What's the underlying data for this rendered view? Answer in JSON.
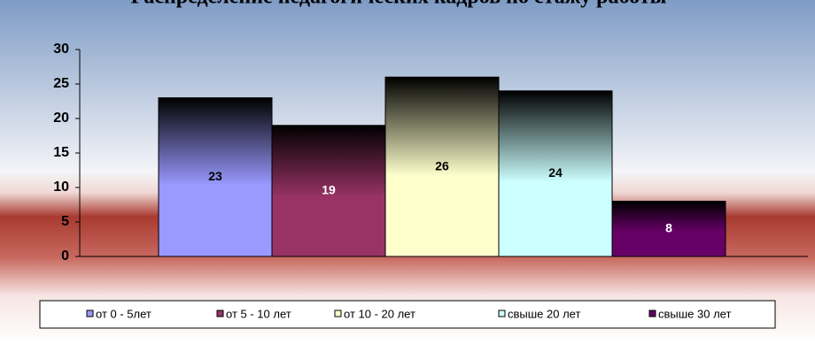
{
  "chart_data": {
    "type": "bar",
    "title": "Распределение педагогических кадров по стажу работы",
    "series": [
      {
        "name": "от 0 - 5лет",
        "color": "#9999ff",
        "values": [
          23
        ]
      },
      {
        "name": "от 5 - 10 лет",
        "color": "#993366",
        "values": [
          19
        ]
      },
      {
        "name": "от 10 - 20 лет",
        "color": "#ffffcc",
        "values": [
          26
        ]
      },
      {
        "name": "свыше 20 лет",
        "color": "#ccffff",
        "values": [
          24
        ]
      },
      {
        "name": "свыше 30 лет",
        "color": "#660066",
        "values": [
          8
        ]
      }
    ],
    "ylim": [
      0,
      30
    ],
    "yticks": [
      0,
      5,
      10,
      15,
      20,
      25,
      30
    ],
    "legend": "bottom"
  }
}
